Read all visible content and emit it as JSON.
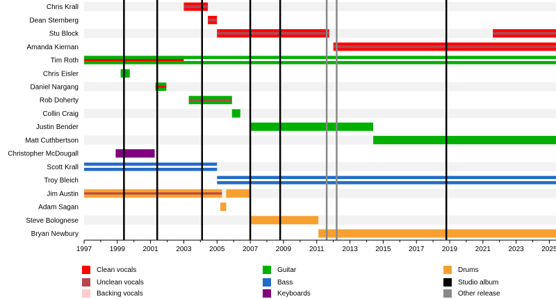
{
  "chart_data": {
    "type": "timeline",
    "x_range": [
      1997,
      2025.4
    ],
    "x_ticks": [
      "1997",
      "1999",
      "2001",
      "2003",
      "2005",
      "2007",
      "2009",
      "2011",
      "2013",
      "2015",
      "2017",
      "2019",
      "2021",
      "2023",
      "2025"
    ],
    "members": [
      "Chris Krall",
      "Dean Sternberg",
      "Stu Block",
      "Amanda Kiernan",
      "Tim Roth",
      "Chris Eisler",
      "Daniel Nargang",
      "Rob Doherty",
      "Collin Craig",
      "Justin Bender",
      "Matt Cuthbertson",
      "Christopher McDougall",
      "Scott Krall",
      "Troy Bleich",
      "Jim Austin",
      "Adam Sagan",
      "Steve Bolognese",
      "Bryan Newbury"
    ],
    "bars": [
      {
        "member": "Chris Krall",
        "start": 2003.0,
        "end": 2004.45,
        "role": "clean",
        "secondary": "unclean"
      },
      {
        "member": "Dean Sternberg",
        "start": 2004.45,
        "end": 2005.0,
        "role": "clean",
        "secondary": "unclean"
      },
      {
        "member": "Stu Block",
        "start": 2005.0,
        "end": 2011.75,
        "role": "clean",
        "secondary": "unclean"
      },
      {
        "member": "Stu Block",
        "start": 2021.6,
        "end": 2025.4,
        "role": "clean",
        "secondary": "unclean"
      },
      {
        "member": "Amanda Kiernan",
        "start": 2012.0,
        "end": 2025.4,
        "role": "clean",
        "secondary": "unclean"
      },
      {
        "member": "Tim Roth",
        "start": 1997.0,
        "end": 2025.4,
        "role": "guitar",
        "stripe": "white"
      },
      {
        "member": "Tim Roth",
        "start": 1997.0,
        "end": 2003.0,
        "role": "guitar",
        "stripe": "clean"
      },
      {
        "member": "Chris Eisler",
        "start": 1999.2,
        "end": 1999.75,
        "role": "guitar"
      },
      {
        "member": "Daniel Nargang",
        "start": 2001.3,
        "end": 2001.95,
        "role": "guitar",
        "stripe": "clean"
      },
      {
        "member": "Rob Doherty",
        "start": 2003.3,
        "end": 2005.9,
        "role": "guitar",
        "stripe": "unclean"
      },
      {
        "member": "Collin Craig",
        "start": 2005.9,
        "end": 2006.4,
        "role": "guitar"
      },
      {
        "member": "Justin Bender",
        "start": 2007.0,
        "end": 2014.4,
        "role": "guitar"
      },
      {
        "member": "Matt Cuthbertson",
        "start": 2014.4,
        "end": 2025.4,
        "role": "guitar"
      },
      {
        "member": "Christopher McDougall",
        "start": 1998.9,
        "end": 2001.25,
        "role": "keyboards"
      },
      {
        "member": "Scott Krall",
        "start": 1997.0,
        "end": 2005.0,
        "role": "bass",
        "stripe": "white"
      },
      {
        "member": "Troy Bleich",
        "start": 2005.0,
        "end": 2025.4,
        "role": "bass",
        "stripe": "white"
      },
      {
        "member": "Jim Austin",
        "start": 1997.0,
        "end": 2005.3,
        "role": "drums",
        "stripe": "unclean"
      },
      {
        "member": "Jim Austin",
        "start": 2005.55,
        "end": 2006.95,
        "role": "drums"
      },
      {
        "member": "Adam Sagan",
        "start": 2005.2,
        "end": 2005.55,
        "role": "drums"
      },
      {
        "member": "Steve Bolognese",
        "start": 2007.0,
        "end": 2011.1,
        "role": "drums"
      },
      {
        "member": "Bryan Newbury",
        "start": 2011.1,
        "end": 2025.4,
        "role": "drums"
      }
    ],
    "studio_albums": [
      1999.4,
      2001.4,
      2004.1,
      2007.0,
      2008.8,
      2018.8
    ],
    "other_releases": [
      2011.6,
      2012.2
    ],
    "legend": [
      {
        "key": "clean",
        "label": "Clean vocals",
        "color": "#ff0000"
      },
      {
        "key": "unclean",
        "label": "Unclean vocals",
        "color": "#b5454f"
      },
      {
        "key": "backing",
        "label": "Backing vocals",
        "color": "#ffcccc"
      },
      {
        "key": "guitar",
        "label": "Guitar",
        "color": "#00b000"
      },
      {
        "key": "bass",
        "label": "Bass",
        "color": "#1f6bc8"
      },
      {
        "key": "keyboards",
        "label": "Keyboards",
        "color": "#800080"
      },
      {
        "key": "drums",
        "label": "Drums",
        "color": "#f7a030"
      },
      {
        "key": "studio",
        "label": "Studio album",
        "color": "#000000"
      },
      {
        "key": "other",
        "label": "Other release",
        "color": "#888888"
      }
    ]
  }
}
